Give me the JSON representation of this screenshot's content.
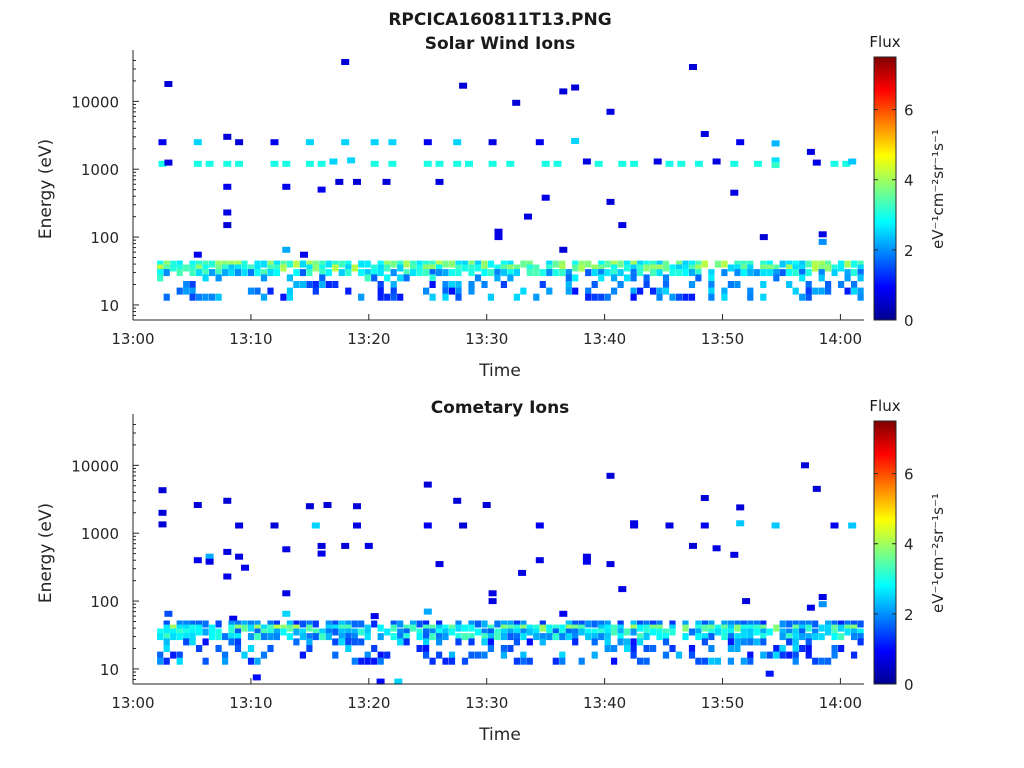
{
  "figure": {
    "title": "RPCICA160811T13.PNG"
  },
  "colormap": {
    "name": "jet",
    "stops": [
      "#00008f",
      "#0000ff",
      "#007fff",
      "#00ffff",
      "#7fff7f",
      "#ffff00",
      "#ff7f00",
      "#ff0000",
      "#7f0000"
    ]
  },
  "chart_data": [
    {
      "type": "heatmap",
      "title": "Solar Wind Ions",
      "xlabel": "Time",
      "ylabel": "Energy (eV)",
      "yscale": "log",
      "ylim": [
        6,
        45000
      ],
      "xlim": [
        "13:00",
        "14:02"
      ],
      "xticks": [
        "13:00",
        "13:10",
        "13:20",
        "13:30",
        "13:40",
        "13:50",
        "14:00"
      ],
      "yticks": [
        "10",
        "100",
        "1000",
        "10000"
      ],
      "colorbar": {
        "label_top": "Flux",
        "label": "eV⁻¹cm⁻²sr⁻¹s⁻¹",
        "range": [
          0,
          7.5
        ],
        "ticks": [
          "0",
          "2",
          "4",
          "6"
        ]
      },
      "cells": [
        [
          "13:02.5",
          2500,
          0.8
        ],
        [
          "13:02.5",
          1200,
          3.0
        ],
        [
          "13:03.0",
          18000,
          0.6
        ],
        [
          "13:03.0",
          1250,
          0.7
        ],
        [
          "13:05.5",
          2500,
          2.5
        ],
        [
          "13:05.5",
          1200,
          3.0
        ],
        [
          "13:06.5",
          1200,
          3.0
        ],
        [
          "13:08.0",
          3000,
          0.6
        ],
        [
          "13:08.0",
          1200,
          3.0
        ],
        [
          "13:08.0",
          550,
          0.8
        ],
        [
          "13:08.0",
          230,
          0.7
        ],
        [
          "13:09.0",
          2500,
          0.6
        ],
        [
          "13:09.0",
          1200,
          3.0
        ],
        [
          "13:12.0",
          2500,
          0.8
        ],
        [
          "13:12.0",
          1200,
          3.0
        ],
        [
          "13:13.0",
          550,
          0.8
        ],
        [
          "13:13.0",
          1200,
          3.0
        ],
        [
          "13:15.0",
          2500,
          2.5
        ],
        [
          "13:15.0",
          1200,
          3.0
        ],
        [
          "13:16.0",
          1200,
          3.0
        ],
        [
          "13:16.0",
          500,
          0.8
        ],
        [
          "13:17.0",
          1300,
          2.5
        ],
        [
          "13:17.5",
          650,
          0.6
        ],
        [
          "13:18.0",
          38000,
          0.6
        ],
        [
          "13:18.0",
          2500,
          2.5
        ],
        [
          "13:18.5",
          1350,
          2.5
        ],
        [
          "13:19.0",
          650,
          0.6
        ],
        [
          "13:20.5",
          2500,
          2.5
        ],
        [
          "13:20.5",
          1200,
          3.0
        ],
        [
          "13:21.5",
          650,
          0.6
        ],
        [
          "13:22.0",
          2500,
          2.5
        ],
        [
          "13:22.0",
          1200,
          3.0
        ],
        [
          "13:25.0",
          2500,
          0.8
        ],
        [
          "13:25.0",
          1200,
          3.0
        ],
        [
          "13:26.0",
          1200,
          3.0
        ],
        [
          "13:26.0",
          650,
          0.7
        ],
        [
          "13:27.5",
          2500,
          2.5
        ],
        [
          "13:27.5",
          1200,
          3.0
        ],
        [
          "13:28.0",
          17000,
          0.6
        ],
        [
          "13:28.5",
          1200,
          3.0
        ],
        [
          "13:30.5",
          2500,
          0.7
        ],
        [
          "13:30.5",
          1200,
          3.0
        ],
        [
          "13:32.0",
          1200,
          3.0
        ],
        [
          "13:32.5",
          9500,
          0.6
        ],
        [
          "13:33.5",
          200,
          0.7
        ],
        [
          "13:34.5",
          2500,
          0.8
        ],
        [
          "13:35.0",
          1200,
          3.0
        ],
        [
          "13:35.0",
          380,
          0.7
        ],
        [
          "13:36.0",
          1200,
          3.0
        ],
        [
          "13:36.5",
          14000,
          0.6
        ],
        [
          "13:37.5",
          16000,
          0.6
        ],
        [
          "13:37.5",
          2600,
          2.5
        ],
        [
          "13:38.5",
          1300,
          0.7
        ],
        [
          "13:39.5",
          1200,
          3.0
        ],
        [
          "13:40.5",
          7000,
          0.7
        ],
        [
          "13:40.5",
          330,
          0.6
        ],
        [
          "13:41.5",
          1200,
          3.0
        ],
        [
          "13:41.5",
          150,
          0.7
        ],
        [
          "13:42.5",
          1200,
          3.0
        ],
        [
          "13:44.5",
          1300,
          0.7
        ],
        [
          "13:45.5",
          1200,
          3.0
        ],
        [
          "13:46.5",
          1200,
          3.0
        ],
        [
          "13:47.5",
          32000,
          0.6
        ],
        [
          "13:48.0",
          1200,
          3.0
        ],
        [
          "13:48.5",
          3300,
          0.7
        ],
        [
          "13:49.5",
          1300,
          0.7
        ],
        [
          "13:51.0",
          1200,
          3.0
        ],
        [
          "13:51.0",
          450,
          0.7
        ],
        [
          "13:51.5",
          2500,
          0.8
        ],
        [
          "13:53.0",
          1200,
          3.0
        ],
        [
          "13:53.5",
          100,
          0.6
        ],
        [
          "13:54.5",
          2400,
          2.3
        ],
        [
          "13:54.5",
          1350,
          2.6
        ],
        [
          "13:54.5",
          1150,
          3.2
        ],
        [
          "13:57.5",
          1800,
          0.7
        ],
        [
          "13:58.0",
          1250,
          0.7
        ],
        [
          "13:58.5",
          110,
          0.7
        ],
        [
          "13:58.5",
          85,
          2.0
        ],
        [
          "13:59.5",
          1200,
          3.0
        ],
        [
          "14:00.5",
          1200,
          3.0
        ],
        [
          "14:01.0",
          1300,
          2.4
        ],
        [
          "13:31.0",
          120,
          0.7
        ],
        [
          "13:31.0",
          100,
          0.7
        ],
        [
          "13:36.5",
          65,
          0.6
        ],
        [
          "13:05.5",
          55,
          0.8
        ],
        [
          "13:08.0",
          150,
          0.6
        ],
        [
          "13:13.0",
          65,
          2.2
        ],
        [
          "13:14.5",
          55,
          0.8
        ]
      ]
    },
    {
      "type": "heatmap",
      "title": "Cometary Ions",
      "xlabel": "Time",
      "ylabel": "Energy (eV)",
      "yscale": "log",
      "ylim": [
        6,
        45000
      ],
      "xlim": [
        "13:00",
        "14:02"
      ],
      "xticks": [
        "13:00",
        "13:10",
        "13:20",
        "13:30",
        "13:40",
        "13:50",
        "14:00"
      ],
      "yticks": [
        "10",
        "100",
        "1000",
        "10000"
      ],
      "colorbar": {
        "label_top": "Flux",
        "label": "eV⁻¹cm⁻²sr⁻¹s⁻¹",
        "range": [
          0,
          7.5
        ],
        "ticks": [
          "0",
          "2",
          "4",
          "6"
        ]
      },
      "cells": [
        [
          "13:02.5",
          4300,
          0.6
        ],
        [
          "13:02.5",
          2000,
          0.6
        ],
        [
          "13:02.5",
          1350,
          0.6
        ],
        [
          "13:03.0",
          65,
          1.5
        ],
        [
          "13:05.5",
          2600,
          0.6
        ],
        [
          "13:05.5",
          400,
          0.8
        ],
        [
          "13:06.5",
          450,
          2.2
        ],
        [
          "13:06.5",
          380,
          0.7
        ],
        [
          "13:08.0",
          3000,
          0.6
        ],
        [
          "13:08.0",
          530,
          0.7
        ],
        [
          "13:08.0",
          230,
          0.8
        ],
        [
          "13:08.5",
          55,
          0.8
        ],
        [
          "13:09.0",
          1300,
          0.7
        ],
        [
          "13:09.0",
          450,
          0.7
        ],
        [
          "13:09.5",
          310,
          0.8
        ],
        [
          "13:12.0",
          1300,
          0.6
        ],
        [
          "13:13.0",
          580,
          0.7
        ],
        [
          "13:13.0",
          130,
          0.7
        ],
        [
          "13:13.0",
          65,
          2.5
        ],
        [
          "13:15.0",
          2500,
          0.6
        ],
        [
          "13:15.5",
          1300,
          2.5
        ],
        [
          "13:16.0",
          650,
          0.7
        ],
        [
          "13:16.0",
          500,
          0.8
        ],
        [
          "13:16.5",
          2600,
          0.6
        ],
        [
          "13:18.0",
          650,
          0.6
        ],
        [
          "13:19.0",
          2500,
          0.6
        ],
        [
          "13:19.0",
          1300,
          0.7
        ],
        [
          "13:20.0",
          650,
          0.7
        ],
        [
          "13:20.5",
          60,
          0.8
        ],
        [
          "13:25.0",
          5200,
          0.6
        ],
        [
          "13:25.0",
          1300,
          0.8
        ],
        [
          "13:25.0",
          70,
          2.2
        ],
        [
          "13:26.0",
          350,
          0.7
        ],
        [
          "13:27.5",
          3000,
          0.6
        ],
        [
          "13:28.0",
          1300,
          0.6
        ],
        [
          "13:30.0",
          2600,
          0.6
        ],
        [
          "13:30.5",
          130,
          0.7
        ],
        [
          "13:30.5",
          100,
          0.7
        ],
        [
          "13:33.0",
          260,
          0.7
        ],
        [
          "13:34.5",
          1300,
          0.8
        ],
        [
          "13:34.5",
          400,
          0.7
        ],
        [
          "13:36.5",
          65,
          0.8
        ],
        [
          "13:38.5",
          450,
          0.7
        ],
        [
          "13:38.5",
          380,
          0.8
        ],
        [
          "13:40.5",
          7000,
          0.6
        ],
        [
          "13:40.5",
          350,
          0.7
        ],
        [
          "13:41.5",
          150,
          0.7
        ],
        [
          "13:42.5",
          1300,
          0.7
        ],
        [
          "13:42.5",
          1400,
          0.7
        ],
        [
          "13:45.5",
          1300,
          0.7
        ],
        [
          "13:47.5",
          650,
          0.6
        ],
        [
          "13:48.5",
          3300,
          0.6
        ],
        [
          "13:48.5",
          1300,
          0.8
        ],
        [
          "13:49.5",
          600,
          0.7
        ],
        [
          "13:51.0",
          480,
          0.7
        ],
        [
          "13:51.5",
          2400,
          0.6
        ],
        [
          "13:51.5",
          1400,
          2.4
        ],
        [
          "13:52.0",
          100,
          0.6
        ],
        [
          "13:54.5",
          1300,
          2.4
        ],
        [
          "13:57.0",
          10000,
          0.6
        ],
        [
          "13:57.5",
          80,
          0.8
        ],
        [
          "13:58.0",
          4500,
          0.6
        ],
        [
          "13:58.5",
          115,
          0.7
        ],
        [
          "13:58.5",
          90,
          2.0
        ],
        [
          "13:59.5",
          1300,
          0.8
        ],
        [
          "14:01.0",
          1300,
          2.4
        ],
        [
          "13:10.5",
          7.5,
          1.0
        ],
        [
          "13:21.0",
          6.5,
          1.0
        ],
        [
          "13:22.5",
          6.5,
          2.5
        ],
        [
          "13:54.0",
          8.5,
          1.1
        ]
      ]
    }
  ]
}
